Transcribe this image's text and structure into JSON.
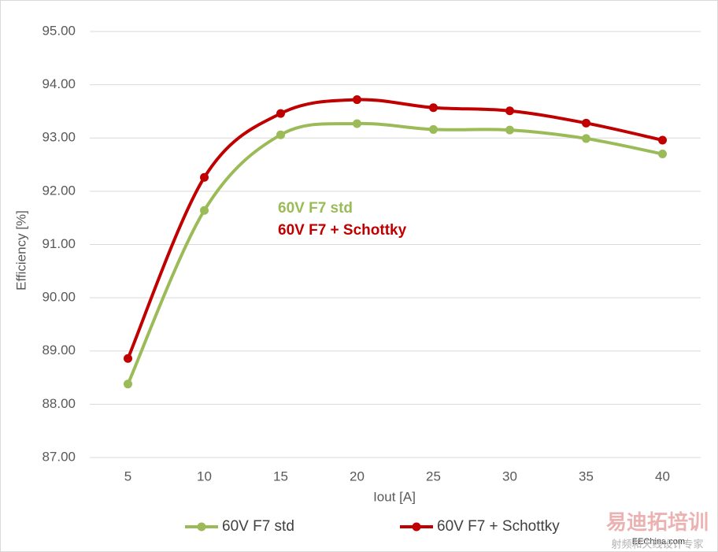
{
  "chart_data": {
    "type": "line",
    "x_label": "Iout [A]",
    "y_label": "Efficiency [%]",
    "categories": [
      "5",
      "10",
      "15",
      "20",
      "25",
      "30",
      "35",
      "40"
    ],
    "series": [
      {
        "name": "60V F7 std",
        "color": "#9bbb59",
        "values": [
          88.38,
          91.64,
          93.06,
          93.27,
          93.16,
          93.15,
          92.99,
          92.7
        ]
      },
      {
        "name": "60V F7 + Schottky",
        "color": "#c00000",
        "values": [
          88.86,
          92.26,
          93.46,
          93.72,
          93.57,
          93.51,
          93.28,
          92.96
        ]
      }
    ],
    "annotations": [
      "60V F7 std",
      "60V F7 + Schottky"
    ],
    "ylim": [
      87,
      95
    ],
    "yticks": [
      {
        "value": 87,
        "label": "87.00"
      },
      {
        "value": 88,
        "label": "88.00"
      },
      {
        "value": 89,
        "label": "89.00"
      },
      {
        "value": 90,
        "label": "90.00"
      },
      {
        "value": 91,
        "label": "91.00"
      },
      {
        "value": 92,
        "label": "92.00"
      },
      {
        "value": 93,
        "label": "93.00"
      },
      {
        "value": 94,
        "label": "94.00"
      },
      {
        "value": 95,
        "label": "95.00"
      }
    ],
    "grid": true,
    "legend": "bottom",
    "smooth": true
  },
  "watermark": {
    "brand": "易迪拓培训",
    "site": "EEChina.com",
    "slogan": "射频和天线设计专家"
  }
}
